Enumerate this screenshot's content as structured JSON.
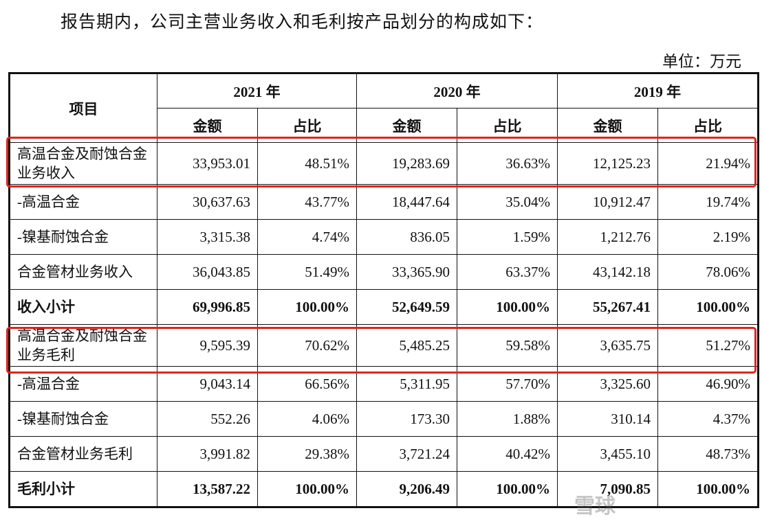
{
  "title": "报告期内，公司主营业务收入和毛利按产品划分的构成如下：",
  "unit": "单位：万元",
  "header": {
    "item": "项目",
    "years": [
      "2021 年",
      "2020 年",
      "2019 年"
    ],
    "amount": "金额",
    "ratio": "占比"
  },
  "rows": [
    {
      "label": "高温合金及耐蚀合金业务收入",
      "v": [
        "33,953.01",
        "48.51%",
        "19,283.69",
        "36.63%",
        "12,125.23",
        "21.94%"
      ]
    },
    {
      "label": "-高温合金",
      "v": [
        "30,637.63",
        "43.77%",
        "18,447.64",
        "35.04%",
        "10,912.47",
        "19.74%"
      ]
    },
    {
      "label": "-镍基耐蚀合金",
      "v": [
        "3,315.38",
        "4.74%",
        "836.05",
        "1.59%",
        "1,212.76",
        "2.19%"
      ]
    },
    {
      "label": "合金管材业务收入",
      "v": [
        "36,043.85",
        "51.49%",
        "33,365.90",
        "63.37%",
        "43,142.18",
        "78.06%"
      ]
    },
    {
      "label": "收入小计",
      "v": [
        "69,996.85",
        "100.00%",
        "52,649.59",
        "100.00%",
        "55,267.41",
        "100.00%"
      ]
    },
    {
      "label": "高温合金及耐蚀合金业务毛利",
      "v": [
        "9,595.39",
        "70.62%",
        "5,485.25",
        "59.58%",
        "3,635.75",
        "51.27%"
      ]
    },
    {
      "label": "-高温合金",
      "v": [
        "9,043.14",
        "66.56%",
        "5,311.95",
        "57.70%",
        "3,325.60",
        "46.90%"
      ]
    },
    {
      "label": "-镍基耐蚀合金",
      "v": [
        "552.26",
        "4.06%",
        "173.30",
        "1.88%",
        "310.14",
        "4.37%"
      ]
    },
    {
      "label": "合金管材业务毛利",
      "v": [
        "3,991.82",
        "29.38%",
        "3,721.24",
        "40.42%",
        "3,455.10",
        "48.73%"
      ]
    },
    {
      "label": "毛利小计",
      "v": [
        "13,587.22",
        "100.00%",
        "9,206.49",
        "100.00%",
        "7,090.85",
        "100.00%"
      ]
    }
  ],
  "watermark": "雪球"
}
